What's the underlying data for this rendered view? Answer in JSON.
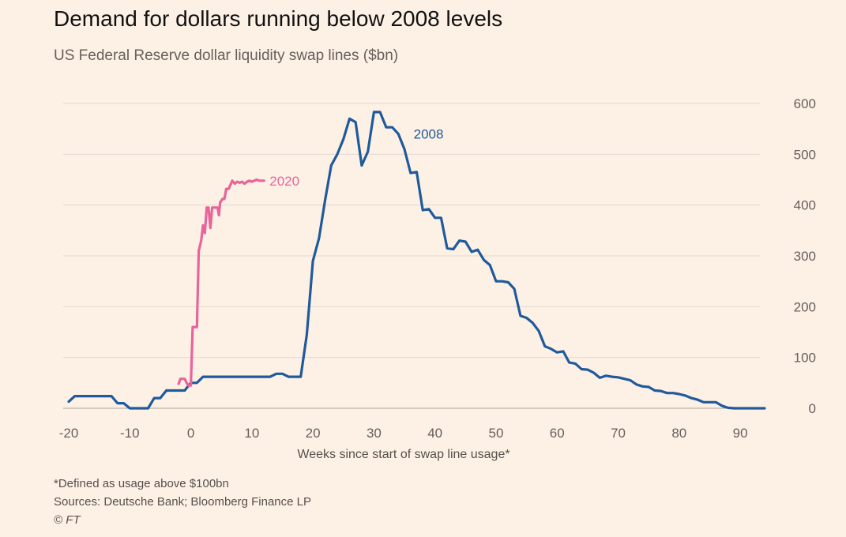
{
  "title": "Demand for dollars running below 2008 levels",
  "subtitle": "US Federal Reserve dollar liquidity swap lines ($bn)",
  "footnotes": {
    "definition": "*Defined as usage above $100bn",
    "sources": "Sources: Deutsche Bank; Bloomberg Finance LP",
    "copyright": "© FT"
  },
  "colors": {
    "background": "#fdf1e6",
    "grid": "#e3d9d0",
    "axis_text": "#66605a",
    "series_2008": "#1f5a9b",
    "series_2020": "#e8649a"
  },
  "chart_data": {
    "type": "line",
    "xlabel": "Weeks since start of swap line usage*",
    "ylabel": "",
    "xlim": [
      -20,
      94
    ],
    "ylim": [
      0,
      600
    ],
    "x_ticks": [
      -20,
      -10,
      0,
      10,
      20,
      30,
      40,
      50,
      60,
      70,
      80,
      90
    ],
    "x_tick_labels": [
      "-20",
      "-10",
      "0",
      "10",
      "20",
      "30",
      "40",
      "50",
      "60",
      "70",
      "80",
      "90"
    ],
    "y_ticks": [
      0,
      100,
      200,
      300,
      400,
      500,
      600
    ],
    "y_tick_labels": [
      "0",
      "100",
      "200",
      "300",
      "400",
      "500",
      "600"
    ],
    "y_axis_side": "right",
    "grid": true,
    "legend": "direct labels on lines",
    "series": [
      {
        "name": "2008",
        "color": "#1f5a9b",
        "label_at": [
          36.5,
          540
        ],
        "points": [
          [
            -20,
            13
          ],
          [
            -19,
            24
          ],
          [
            -18,
            24
          ],
          [
            -17,
            24
          ],
          [
            -16,
            24
          ],
          [
            -15,
            24
          ],
          [
            -14,
            24
          ],
          [
            -13,
            24
          ],
          [
            -12,
            10
          ],
          [
            -11,
            10
          ],
          [
            -10,
            0
          ],
          [
            -9,
            0
          ],
          [
            -8,
            0
          ],
          [
            -7,
            0
          ],
          [
            -6,
            20
          ],
          [
            -5,
            20
          ],
          [
            -4,
            35
          ],
          [
            -3,
            35
          ],
          [
            -2,
            35
          ],
          [
            -1,
            35
          ],
          [
            0,
            50
          ],
          [
            1,
            50
          ],
          [
            2,
            62
          ],
          [
            3,
            62
          ],
          [
            4,
            62
          ],
          [
            5,
            62
          ],
          [
            6,
            62
          ],
          [
            7,
            62
          ],
          [
            8,
            62
          ],
          [
            9,
            62
          ],
          [
            10,
            62
          ],
          [
            11,
            62
          ],
          [
            12,
            62
          ],
          [
            13,
            62
          ],
          [
            14,
            68
          ],
          [
            15,
            68
          ],
          [
            16,
            62
          ],
          [
            17,
            62
          ],
          [
            18,
            62
          ],
          [
            19,
            145
          ],
          [
            20,
            290
          ],
          [
            21,
            335
          ],
          [
            22,
            410
          ],
          [
            23,
            478
          ],
          [
            24,
            500
          ],
          [
            25,
            530
          ],
          [
            26,
            570
          ],
          [
            27,
            563
          ],
          [
            28,
            478
          ],
          [
            29,
            505
          ],
          [
            30,
            583
          ],
          [
            31,
            583
          ],
          [
            32,
            553
          ],
          [
            33,
            553
          ],
          [
            34,
            540
          ],
          [
            35,
            510
          ],
          [
            36,
            463
          ],
          [
            37,
            465
          ],
          [
            38,
            390
          ],
          [
            39,
            392
          ],
          [
            40,
            375
          ],
          [
            41,
            375
          ],
          [
            42,
            315
          ],
          [
            43,
            313
          ],
          [
            44,
            330
          ],
          [
            45,
            328
          ],
          [
            46,
            308
          ],
          [
            47,
            312
          ],
          [
            48,
            292
          ],
          [
            49,
            282
          ],
          [
            50,
            250
          ],
          [
            51,
            250
          ],
          [
            52,
            248
          ],
          [
            53,
            235
          ],
          [
            54,
            182
          ],
          [
            55,
            178
          ],
          [
            56,
            168
          ],
          [
            57,
            152
          ],
          [
            58,
            122
          ],
          [
            59,
            117
          ],
          [
            60,
            110
          ],
          [
            61,
            112
          ],
          [
            62,
            90
          ],
          [
            63,
            88
          ],
          [
            64,
            77
          ],
          [
            65,
            76
          ],
          [
            66,
            70
          ],
          [
            67,
            60
          ],
          [
            68,
            64
          ],
          [
            69,
            62
          ],
          [
            70,
            61
          ],
          [
            71,
            58
          ],
          [
            72,
            55
          ],
          [
            73,
            47
          ],
          [
            74,
            43
          ],
          [
            75,
            42
          ],
          [
            76,
            35
          ],
          [
            77,
            34
          ],
          [
            78,
            30
          ],
          [
            79,
            30
          ],
          [
            80,
            28
          ],
          [
            81,
            25
          ],
          [
            82,
            20
          ],
          [
            83,
            17
          ],
          [
            84,
            12
          ],
          [
            85,
            12
          ],
          [
            86,
            12
          ],
          [
            87,
            5
          ],
          [
            88,
            1
          ],
          [
            89,
            0
          ],
          [
            90,
            0
          ],
          [
            91,
            0
          ],
          [
            92,
            0
          ],
          [
            93,
            0
          ],
          [
            94,
            0
          ]
        ]
      },
      {
        "name": "2020",
        "color": "#e8649a",
        "label_at": [
          12.9,
          448
        ],
        "points": [
          [
            -2,
            48
          ],
          [
            -1.7,
            58
          ],
          [
            -1.3,
            58
          ],
          [
            -1,
            58
          ],
          [
            -0.7,
            50
          ],
          [
            -0.4,
            45
          ],
          [
            -0.2,
            45
          ],
          [
            0,
            45
          ],
          [
            0.3,
            160
          ],
          [
            0.6,
            160
          ],
          [
            1,
            160
          ],
          [
            1.3,
            310
          ],
          [
            1.7,
            330
          ],
          [
            2,
            360
          ],
          [
            2.3,
            345
          ],
          [
            2.6,
            395
          ],
          [
            2.9,
            395
          ],
          [
            3.2,
            355
          ],
          [
            3.5,
            395
          ],
          [
            3.8,
            395
          ],
          [
            4,
            395
          ],
          [
            4.4,
            395
          ],
          [
            4.6,
            380
          ],
          [
            4.8,
            405
          ],
          [
            5.2,
            412
          ],
          [
            5.5,
            412
          ],
          [
            5.8,
            432
          ],
          [
            6.2,
            432
          ],
          [
            6.5,
            440
          ],
          [
            6.8,
            448
          ],
          [
            7.2,
            442
          ],
          [
            7.6,
            446
          ],
          [
            8,
            444
          ],
          [
            8.4,
            446
          ],
          [
            8.8,
            442
          ],
          [
            9.2,
            446
          ],
          [
            9.6,
            448
          ],
          [
            10,
            446
          ],
          [
            10.4,
            448
          ],
          [
            10.8,
            450
          ],
          [
            11.2,
            448
          ],
          [
            11.6,
            448
          ],
          [
            12,
            448
          ],
          [
            12,
            448
          ]
        ]
      }
    ]
  }
}
